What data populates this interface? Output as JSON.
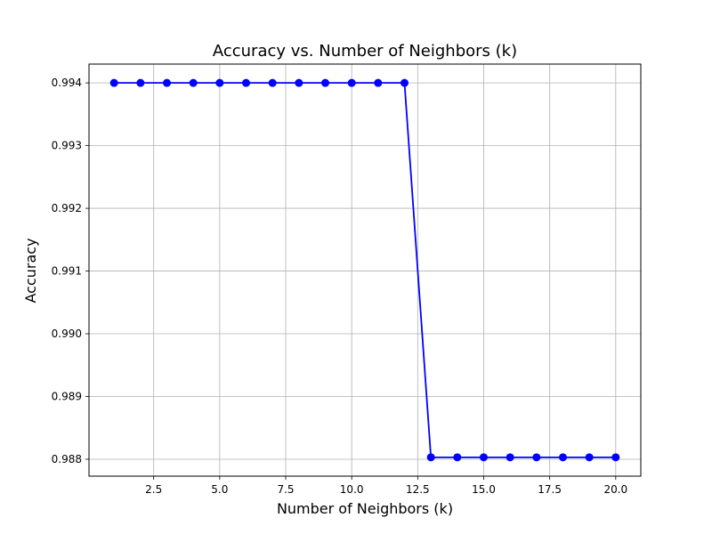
{
  "chart_data": {
    "type": "line",
    "title": "Accuracy vs. Number of Neighbors (k)",
    "xlabel": "Number of Neighbors (k)",
    "ylabel": "Accuracy",
    "xlim": [
      0.05,
      20.95
    ],
    "ylim": [
      0.98773,
      0.9943
    ],
    "grid": true,
    "x_ticks": [
      2.5,
      5.0,
      7.5,
      10.0,
      12.5,
      15.0,
      17.5,
      20.0
    ],
    "x_tick_labels": [
      "2.5",
      "5.0",
      "7.5",
      "10.0",
      "12.5",
      "15.0",
      "17.5",
      "20.0"
    ],
    "y_ticks": [
      0.988,
      0.989,
      0.99,
      0.991,
      0.992,
      0.993,
      0.994
    ],
    "y_tick_labels": [
      "0.988",
      "0.989",
      "0.990",
      "0.991",
      "0.992",
      "0.993",
      "0.994"
    ],
    "series": [
      {
        "color": "#0000ff",
        "marker": "circle",
        "x": [
          1,
          2,
          3,
          4,
          5,
          6,
          7,
          8,
          9,
          10,
          11,
          12,
          13,
          14,
          15,
          16,
          17,
          18,
          19,
          20
        ],
        "values": [
          0.994,
          0.994,
          0.994,
          0.994,
          0.994,
          0.994,
          0.994,
          0.994,
          0.994,
          0.994,
          0.994,
          0.994,
          0.98803,
          0.98803,
          0.98803,
          0.98803,
          0.98803,
          0.98803,
          0.98803,
          0.98803
        ]
      }
    ]
  }
}
